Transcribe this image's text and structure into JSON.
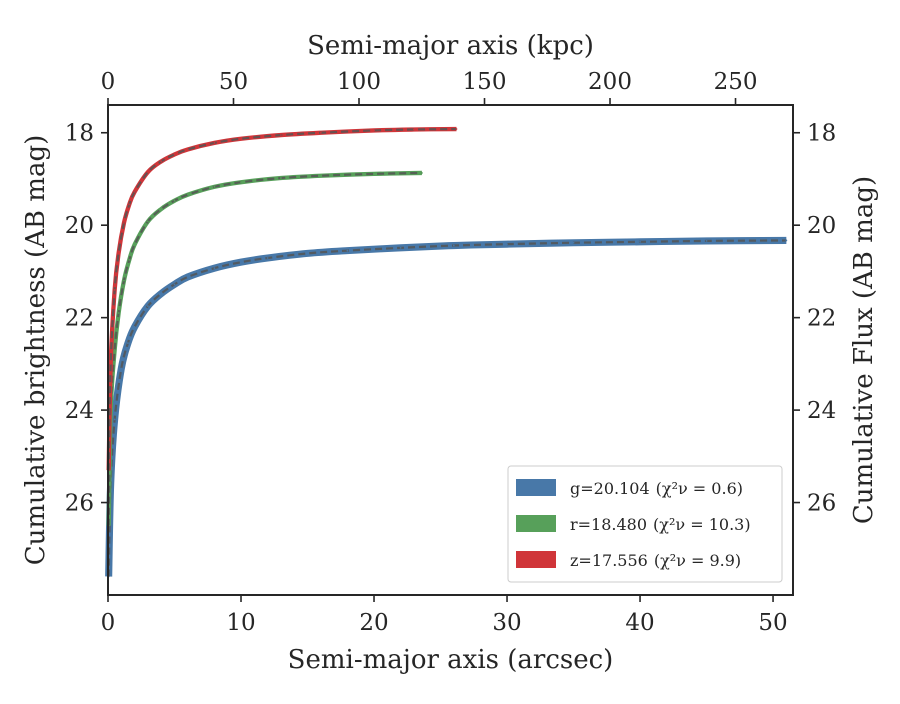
{
  "chart_data": {
    "type": "line",
    "xlabel": "Semi-major axis (arcsec)",
    "xlabel_top": "Semi-major axis (kpc)",
    "ylabel": "Cumulative brightness (AB mag)",
    "ylabel_right": "Cumulative Flux (AB mag)",
    "xlim": [
      0,
      51.5
    ],
    "ylim": [
      28.0,
      17.4
    ],
    "y_inverted": true,
    "x_ticks": [
      0,
      10,
      20,
      30,
      40,
      50
    ],
    "y_ticks": [
      18,
      20,
      22,
      24,
      26
    ],
    "top_xlim_kpc": [
      0,
      272.9
    ],
    "top_ticks_kpc": [
      0,
      50,
      100,
      150,
      200,
      250
    ],
    "right_y_ticks": [
      18,
      20,
      22,
      24,
      26
    ],
    "grid": false,
    "legend_position": "lower-right",
    "series": [
      {
        "key": "g",
        "name": "g=20.104",
        "chi": "(χ²ν = 0.6)",
        "color": "#4878a8",
        "band_width": 0.05,
        "x": [
          0.05,
          0.2,
          0.5,
          1.0,
          1.5,
          2.0,
          3.0,
          4.0,
          5.0,
          6.0,
          8.0,
          10.0,
          12.0,
          15.0,
          18.0,
          22.0,
          26.0,
          30.0,
          35.0,
          40.0,
          45.0,
          51.0
        ],
        "y": [
          27.6,
          25.6,
          24.2,
          23.1,
          22.55,
          22.2,
          21.75,
          21.48,
          21.28,
          21.12,
          20.93,
          20.8,
          20.71,
          20.61,
          20.55,
          20.49,
          20.44,
          20.41,
          20.38,
          20.36,
          20.34,
          20.33
        ]
      },
      {
        "key": "r",
        "name": "r=18.480",
        "chi": "(χ²ν = 10.3)",
        "color": "#57a05a",
        "band_width": 0.02,
        "x": [
          0.05,
          0.2,
          0.5,
          0.8,
          1.2,
          1.6,
          2.0,
          3.0,
          4.0,
          5.0,
          6.0,
          8.0,
          10.0,
          13.0,
          16.0,
          20.0,
          23.6
        ],
        "y": [
          26.5,
          24.0,
          22.7,
          21.9,
          21.2,
          20.75,
          20.42,
          19.92,
          19.65,
          19.47,
          19.34,
          19.17,
          19.07,
          18.98,
          18.93,
          18.89,
          18.87
        ]
      },
      {
        "key": "z",
        "name": "z=17.556",
        "chi": "(χ²ν = 9.9)",
        "color": "#d03539",
        "band_width": 0.02,
        "x": [
          0.05,
          0.2,
          0.5,
          0.8,
          1.2,
          1.6,
          2.0,
          3.0,
          4.0,
          5.0,
          6.0,
          8.0,
          10.0,
          13.0,
          16.0,
          20.0,
          23.0,
          26.2
        ],
        "y": [
          25.3,
          23.0,
          21.4,
          20.6,
          19.95,
          19.55,
          19.28,
          18.85,
          18.62,
          18.47,
          18.36,
          18.22,
          18.13,
          18.05,
          18.0,
          17.95,
          17.93,
          17.92
        ]
      }
    ]
  }
}
